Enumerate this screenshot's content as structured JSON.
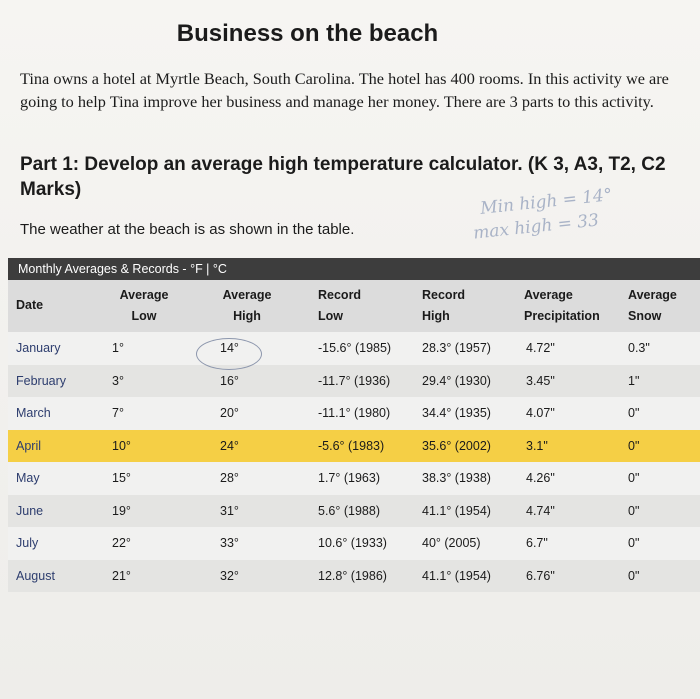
{
  "title": "Business on the beach",
  "intro": "Tina owns a hotel at Myrtle Beach, South Carolina.  The hotel has 400 rooms. In this activity we are going to help Tina improve her business and manage her money. There are 3 parts to this activity.",
  "part1": "Part 1:  Develop an average high temperature calculator. (K 3, A3, T2, C2 Marks)",
  "weather_text": "The weather at the beach is as shown in the table.",
  "handwriting": {
    "line1": "Min high = 14°",
    "line2": "max high = 33"
  },
  "table": {
    "title": "Monthly Averages & Records - °F | °C",
    "headers": {
      "date": "Date",
      "avg_low_1": "Average",
      "avg_low_2": "Low",
      "avg_high_1": "Average",
      "avg_high_2": "High",
      "rec_low_1": "Record",
      "rec_low_2": "Low",
      "rec_high_1": "Record",
      "rec_high_2": "High",
      "precip_1": "Average",
      "precip_2": "Precipitation",
      "snow_1": "Average",
      "snow_2": "Snow"
    },
    "rows": [
      {
        "month": "January",
        "low": "1°",
        "high": "14°",
        "rec_low": "-15.6° (1985)",
        "rec_high": "28.3° (1957)",
        "precip": "4.72\"",
        "snow": "0.3\""
      },
      {
        "month": "February",
        "low": "3°",
        "high": "16°",
        "rec_low": "-11.7° (1936)",
        "rec_high": "29.4° (1930)",
        "precip": "3.45\"",
        "snow": "1\""
      },
      {
        "month": "March",
        "low": "7°",
        "high": "20°",
        "rec_low": "-11.1° (1980)",
        "rec_high": "34.4° (1935)",
        "precip": "4.07\"",
        "snow": "0\""
      },
      {
        "month": "April",
        "low": "10°",
        "high": "24°",
        "rec_low": "-5.6° (1983)",
        "rec_high": "35.6° (2002)",
        "precip": "3.1\"",
        "snow": "0\""
      },
      {
        "month": "May",
        "low": "15°",
        "high": "28°",
        "rec_low": "1.7° (1963)",
        "rec_high": "38.3° (1938)",
        "precip": "4.26\"",
        "snow": "0\""
      },
      {
        "month": "June",
        "low": "19°",
        "high": "31°",
        "rec_low": "5.6° (1988)",
        "rec_high": "41.1° (1954)",
        "precip": "4.74\"",
        "snow": "0\""
      },
      {
        "month": "July",
        "low": "22°",
        "high": "33°",
        "rec_low": "10.6° (1933)",
        "rec_high": "40° (2005)",
        "precip": "6.7\"",
        "snow": "0\""
      },
      {
        "month": "August",
        "low": "21°",
        "high": "32°",
        "rec_low": "12.8° (1986)",
        "rec_high": "41.1° (1954)",
        "precip": "6.76\"",
        "snow": "0\""
      }
    ]
  }
}
